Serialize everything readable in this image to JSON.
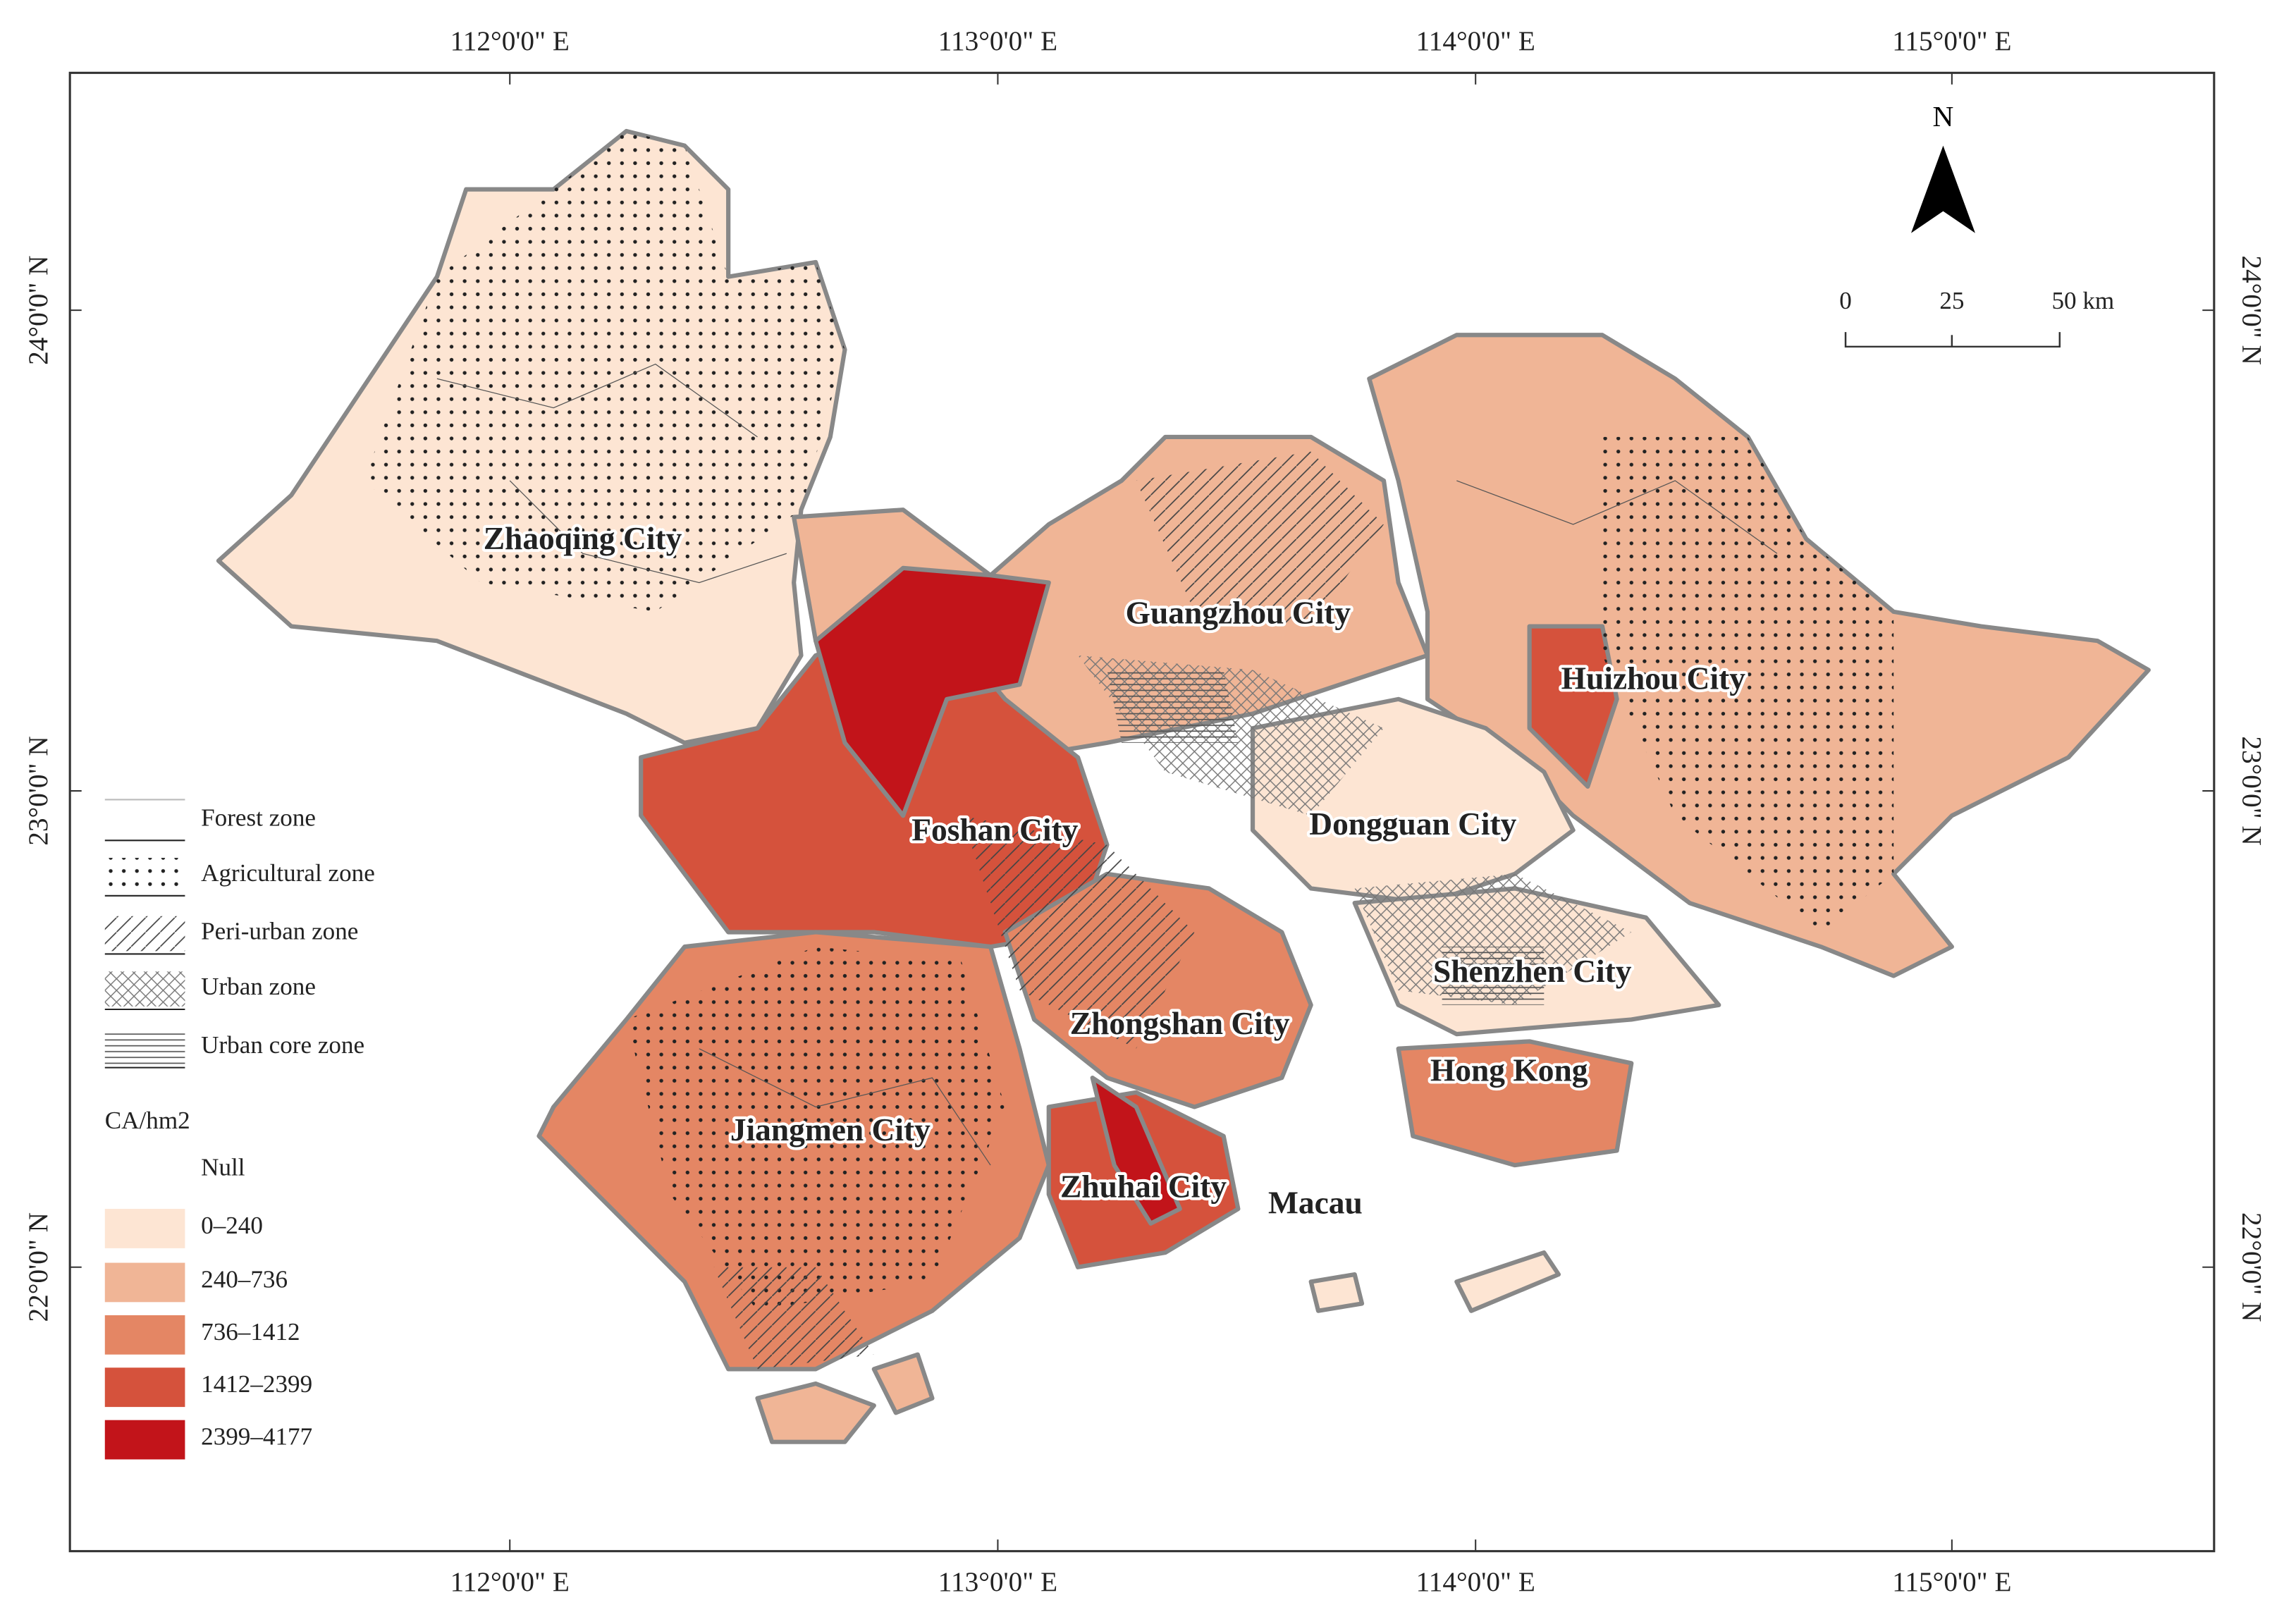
{
  "graticule": {
    "top": [
      "112°0'0\" E",
      "113°0'0\" E",
      "114°0'0\" E",
      "115°0'0\" E"
    ],
    "bottom": [
      "112°0'0\" E",
      "113°0'0\" E",
      "114°0'0\" E",
      "115°0'0\" E"
    ],
    "left": [
      "24°0'0\" N",
      "23°0'0\" N",
      "22°0'0\" N"
    ],
    "right": [
      "24°0'0\" N",
      "23°0'0\" N",
      "22°0'0\" N"
    ]
  },
  "north_arrow": "N",
  "scale_bar": [
    "0",
    "25",
    "50 km"
  ],
  "cities": [
    "Zhaoqing City",
    "Guangzhou City",
    "Huizhou City",
    "Foshan City",
    "Dongguan City",
    "Shenzhen City",
    "Zhongshan City",
    "Hong Kong",
    "Jiangmen City",
    "Zhuhai City",
    "Macau"
  ],
  "legend": {
    "zones": [
      "Forest zone",
      "Agricultural zone",
      "Peri-urban zone",
      "Urban zone",
      "Urban core zone"
    ],
    "ca_title": "CA/hm2",
    "ca_classes": [
      {
        "label": "Null",
        "color": "#ffffff"
      },
      {
        "label": "0–240",
        "color": "#fde5d3"
      },
      {
        "label": "240–736",
        "color": "#f0b596"
      },
      {
        "label": "736–1412",
        "color": "#e48664"
      },
      {
        "label": "1412–2399",
        "color": "#d5523c"
      },
      {
        "label": "2399–4177",
        "color": "#c2141a"
      }
    ]
  }
}
